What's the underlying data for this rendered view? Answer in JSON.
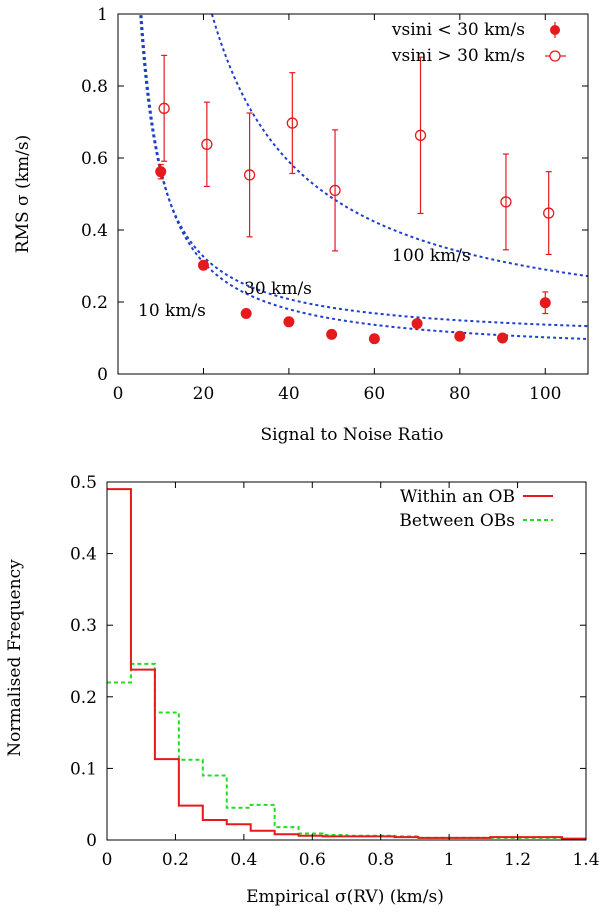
{
  "chart_data": [
    {
      "type": "scatter",
      "xlabel": "Signal to Noise Ratio",
      "ylabel": "RMS σ (km/s)",
      "xlim": [
        0,
        110
      ],
      "ylim": [
        0,
        1
      ],
      "xticks": [
        0,
        20,
        40,
        60,
        80,
        100
      ],
      "xtick_labels": [
        "0",
        "20",
        "40",
        "60",
        "80",
        "100"
      ],
      "yticks": [
        0,
        0.2,
        0.4,
        0.6,
        0.8,
        1
      ],
      "ytick_labels": [
        "0",
        "0.2",
        "0.4",
        "0.6",
        "0.8",
        "1"
      ],
      "legend_position": "top-right",
      "series": [
        {
          "name": "vsini < 30 km/s",
          "marker": "filled-circle",
          "color": "#e41a1c",
          "points": [
            {
              "x": 10,
              "y": 0.562,
              "err": 0.02
            },
            {
              "x": 20,
              "y": 0.302,
              "err": 0.012
            },
            {
              "x": 30,
              "y": 0.168,
              "err": 0.01
            },
            {
              "x": 40,
              "y": 0.145,
              "err": 0.01
            },
            {
              "x": 50,
              "y": 0.11,
              "err": 0.006
            },
            {
              "x": 60,
              "y": 0.098,
              "err": 0.005
            },
            {
              "x": 70,
              "y": 0.14,
              "err": 0.006
            },
            {
              "x": 80,
              "y": 0.105,
              "err": 0.005
            },
            {
              "x": 90,
              "y": 0.1,
              "err": 0.005
            },
            {
              "x": 100,
              "y": 0.198,
              "err": 0.03
            }
          ]
        },
        {
          "name": "vsini > 30 km/s",
          "marker": "open-circle",
          "color": "#e41a1c",
          "points": [
            {
              "x": 10.8,
              "y": 0.738,
              "err": 0.147
            },
            {
              "x": 20.8,
              "y": 0.638,
              "err": 0.117
            },
            {
              "x": 30.8,
              "y": 0.553,
              "err": 0.172
            },
            {
              "x": 40.8,
              "y": 0.697,
              "err": 0.14
            },
            {
              "x": 50.8,
              "y": 0.51,
              "err": 0.168
            },
            {
              "x": 70.8,
              "y": 0.663,
              "err": 0.217
            },
            {
              "x": 90.8,
              "y": 0.478,
              "err": 0.133
            },
            {
              "x": 100.8,
              "y": 0.447,
              "err": 0.115
            }
          ]
        }
      ],
      "curves": [
        {
          "label": "10 km/s",
          "a": 4.72,
          "b": 0.09,
          "color": "#1f3fcf"
        },
        {
          "label": "30 km/s",
          "a": 5.2,
          "b": 0.05,
          "color": "#1f3fcf"
        },
        {
          "label": "100 km/s",
          "a": 20.0,
          "b": 0.09,
          "color": "#1f3fcf"
        }
      ],
      "curve_formula": "y = a / x + b"
    },
    {
      "type": "step",
      "xlabel": "Empirical σ(RV) (km/s)",
      "ylabel": "Normalised Frequency",
      "xlim": [
        0,
        1.4
      ],
      "ylim": [
        0,
        0.5
      ],
      "xticks": [
        0,
        0.2,
        0.4,
        0.6,
        0.8,
        1,
        1.2,
        1.4
      ],
      "xtick_labels": [
        "0",
        "0.2",
        "0.4",
        "0.6",
        "0.8",
        "1",
        "1.2",
        "1.4"
      ],
      "yticks": [
        0,
        0.1,
        0.2,
        0.3,
        0.4,
        0.5
      ],
      "ytick_labels": [
        "0",
        "0.1",
        "0.2",
        "0.3",
        "0.4",
        "0.5"
      ],
      "legend_position": "top-right",
      "bin_edges": [
        0,
        0.07,
        0.14,
        0.21,
        0.28,
        0.35,
        0.42,
        0.49,
        0.56,
        0.63,
        0.7,
        0.77,
        0.84,
        0.91,
        0.98,
        1.05,
        1.12,
        1.19,
        1.26,
        1.33,
        1.4
      ],
      "series": [
        {
          "name": "Within an OB",
          "style": "solid",
          "color": "#e41a1c",
          "values": [
            0.49,
            0.238,
            0.113,
            0.048,
            0.028,
            0.022,
            0.013,
            0.008,
            0.006,
            0.005,
            0.005,
            0.005,
            0.004,
            0.003,
            0.003,
            0.003,
            0.004,
            0.004,
            0.004,
            0.002
          ]
        },
        {
          "name": "Between OBs",
          "style": "dashed",
          "color": "#22dd22",
          "values": [
            0.22,
            0.246,
            0.178,
            0.112,
            0.09,
            0.045,
            0.049,
            0.018,
            0.009,
            0.007,
            0.006,
            0.006,
            0.005,
            0.003,
            0.003,
            0.003,
            0.003,
            0.003,
            0.003,
            0.001
          ]
        }
      ]
    }
  ]
}
